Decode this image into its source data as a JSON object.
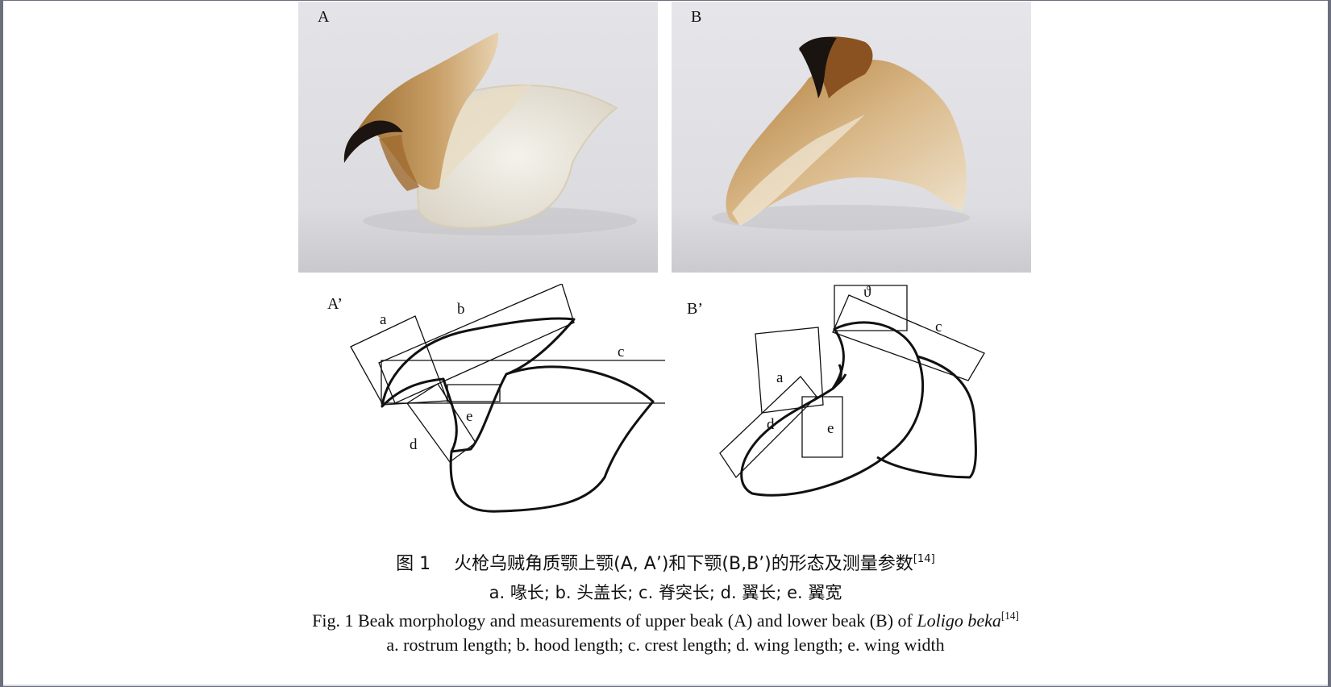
{
  "panels": {
    "A": "A",
    "B": "B",
    "A_prime": "A’",
    "B_prime": "B’"
  },
  "drawing_a_labels": {
    "a": "a",
    "b": "b",
    "c": "c",
    "d": "d",
    "e": "e"
  },
  "drawing_b_labels": {
    "top": "ϑ",
    "a": "a",
    "c": "c",
    "d": "d",
    "e": "e"
  },
  "caption": {
    "zh_title": "图 1　 火枪乌贼角质颚上颚(A, A’)和下颚(B,B’)的形态及测量参数",
    "zh_ref": "[14]",
    "zh_legend": "a. 喙长; b. 头盖长; c. 脊突长; d. 翼长; e. 翼宽",
    "en_title": "Fig. 1 Beak morphology and measurements of upper beak (A) and lower beak (B) of ",
    "en_species": "Loligo beka",
    "en_ref": "[14]",
    "en_legend": "a. rostrum length; b. hood length; c. crest length; d. wing length; e. wing width"
  }
}
